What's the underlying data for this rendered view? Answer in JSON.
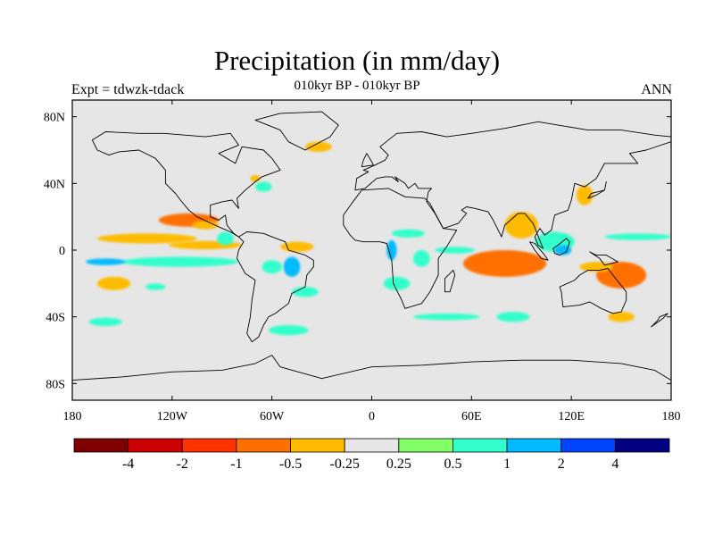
{
  "title": "Precipitation (in mm/day)",
  "subtitle": "010kyr BP - 010kyr BP",
  "left_label": "Expt = tdwzk-tdack",
  "right_label": "ANN",
  "map": {
    "projection": "cylindrical-equidistant",
    "lon_range": [
      -180,
      180
    ],
    "lat_range": [
      -90,
      90
    ],
    "background_color": "#e6e6e6",
    "coastline_color": "#000000",
    "lat_ticks": [
      {
        "value": 80,
        "label": "80N"
      },
      {
        "value": 40,
        "label": "40N"
      },
      {
        "value": 0,
        "label": "0"
      },
      {
        "value": -40,
        "label": "40S"
      },
      {
        "value": -80,
        "label": "80S"
      }
    ],
    "lon_ticks": [
      {
        "value": -180,
        "label": "180"
      },
      {
        "value": -120,
        "label": "120W"
      },
      {
        "value": -60,
        "label": "60W"
      },
      {
        "value": 0,
        "label": "0"
      },
      {
        "value": 60,
        "label": "60E"
      },
      {
        "value": 120,
        "label": "120E"
      },
      {
        "value": 180,
        "label": "180"
      }
    ]
  },
  "colorbar": {
    "colors": [
      "#800000",
      "#cc0000",
      "#ff3300",
      "#ff7000",
      "#ffbb00",
      "#e6e6e6",
      "#80ff66",
      "#33ffcc",
      "#00bbff",
      "#0044ff",
      "#000080"
    ],
    "labels": [
      "-4",
      "-2",
      "-1",
      "-0.5",
      "-0.25",
      "0.25",
      "0.5",
      "1",
      "2",
      "4"
    ]
  },
  "anomalies": [
    {
      "lon": -110,
      "lat": 18,
      "rx": 18,
      "ry": 4,
      "level": -1
    },
    {
      "lon": -100,
      "lat": 15,
      "rx": 8,
      "ry": 2.5,
      "level": -0.5
    },
    {
      "lon": -135,
      "lat": 7,
      "rx": 30,
      "ry": 3,
      "level": -0.5
    },
    {
      "lon": -100,
      "lat": 3,
      "rx": 22,
      "ry": 2.5,
      "level": -0.5
    },
    {
      "lon": -155,
      "lat": -20,
      "rx": 10,
      "ry": 4,
      "level": -0.5
    },
    {
      "lon": -88,
      "lat": 7,
      "rx": 5,
      "ry": 4,
      "level": 0.5
    },
    {
      "lon": -115,
      "lat": -7,
      "rx": 35,
      "ry": 3,
      "level": 0.5
    },
    {
      "lon": -160,
      "lat": -7,
      "rx": 12,
      "ry": 2,
      "level": 1
    },
    {
      "lon": -130,
      "lat": -22,
      "rx": 6,
      "ry": 2,
      "level": 0.5
    },
    {
      "lon": -160,
      "lat": -43,
      "rx": 10,
      "ry": 2.5,
      "level": 0.5
    },
    {
      "lon": -45,
      "lat": 2,
      "rx": 10,
      "ry": 3,
      "level": -0.5
    },
    {
      "lon": -48,
      "lat": -10,
      "rx": 5,
      "ry": 6,
      "level": 1
    },
    {
      "lon": -60,
      "lat": -10,
      "rx": 6,
      "ry": 4,
      "level": 0.5
    },
    {
      "lon": -40,
      "lat": -25,
      "rx": 8,
      "ry": 3,
      "level": 0.5
    },
    {
      "lon": -32,
      "lat": 62,
      "rx": 8,
      "ry": 3,
      "level": -0.5
    },
    {
      "lon": -65,
      "lat": 38,
      "rx": 5,
      "ry": 3,
      "level": 0.5
    },
    {
      "lon": -70,
      "lat": 43,
      "rx": 3,
      "ry": 2,
      "level": -0.5
    },
    {
      "lon": 12,
      "lat": 0,
      "rx": 3,
      "ry": 6,
      "level": 1
    },
    {
      "lon": 22,
      "lat": 10,
      "rx": 10,
      "ry": 2.5,
      "level": 0.5
    },
    {
      "lon": 30,
      "lat": -5,
      "rx": 5,
      "ry": 5,
      "level": 0.5
    },
    {
      "lon": 15,
      "lat": -20,
      "rx": 8,
      "ry": 4,
      "level": 0.5
    },
    {
      "lon": 50,
      "lat": 0,
      "rx": 12,
      "ry": 2,
      "level": 0.5
    },
    {
      "lon": 80,
      "lat": -8,
      "rx": 25,
      "ry": 8,
      "level": -1
    },
    {
      "lon": 90,
      "lat": 15,
      "rx": 10,
      "ry": 8,
      "level": -0.5
    },
    {
      "lon": 110,
      "lat": 5,
      "rx": 12,
      "ry": 6,
      "level": 0.5
    },
    {
      "lon": 115,
      "lat": 0,
      "rx": 5,
      "ry": 3,
      "level": 1
    },
    {
      "lon": 160,
      "lat": 8,
      "rx": 20,
      "ry": 2,
      "level": 0.5
    },
    {
      "lon": 150,
      "lat": -15,
      "rx": 15,
      "ry": 8,
      "level": -1
    },
    {
      "lon": 135,
      "lat": -10,
      "rx": 10,
      "ry": 3,
      "level": -0.5
    },
    {
      "lon": 150,
      "lat": -40,
      "rx": 8,
      "ry": 3,
      "level": -0.5
    },
    {
      "lon": 85,
      "lat": -40,
      "rx": 10,
      "ry": 3,
      "level": 0.5
    },
    {
      "lon": 128,
      "lat": 33,
      "rx": 5,
      "ry": 6,
      "level": -0.5
    },
    {
      "lon": -50,
      "lat": -48,
      "rx": 12,
      "ry": 3,
      "level": 0.5
    },
    {
      "lon": 45,
      "lat": -40,
      "rx": 20,
      "ry": 2,
      "level": 0.5
    }
  ],
  "land": [
    [
      [
        -168,
        66
      ],
      [
        -160,
        71
      ],
      [
        -140,
        70
      ],
      [
        -125,
        70
      ],
      [
        -100,
        68
      ],
      [
        -85,
        70
      ],
      [
        -80,
        63
      ],
      [
        -92,
        58
      ],
      [
        -82,
        52
      ],
      [
        -78,
        62
      ],
      [
        -65,
        60
      ],
      [
        -60,
        55
      ],
      [
        -55,
        48
      ],
      [
        -66,
        44
      ],
      [
        -70,
        41
      ],
      [
        -76,
        36
      ],
      [
        -81,
        31
      ],
      [
        -80,
        25
      ],
      [
        -84,
        30
      ],
      [
        -90,
        29
      ],
      [
        -97,
        27
      ],
      [
        -97,
        20
      ],
      [
        -92,
        18
      ],
      [
        -88,
        21
      ],
      [
        -87,
        15
      ],
      [
        -83,
        10
      ],
      [
        -80,
        8
      ],
      [
        -85,
        11
      ],
      [
        -92,
        14
      ],
      [
        -105,
        20
      ],
      [
        -110,
        24
      ],
      [
        -115,
        30
      ],
      [
        -118,
        34
      ],
      [
        -124,
        40
      ],
      [
        -124,
        48
      ],
      [
        -130,
        55
      ],
      [
        -140,
        60
      ],
      [
        -152,
        59
      ],
      [
        -158,
        57
      ],
      [
        -165,
        60
      ],
      [
        -168,
        66
      ]
    ],
    [
      [
        -55,
        82
      ],
      [
        -30,
        83
      ],
      [
        -20,
        75
      ],
      [
        -25,
        68
      ],
      [
        -40,
        60
      ],
      [
        -50,
        65
      ],
      [
        -55,
        72
      ],
      [
        -70,
        78
      ],
      [
        -55,
        82
      ]
    ],
    [
      [
        -80,
        8
      ],
      [
        -75,
        11
      ],
      [
        -65,
        10
      ],
      [
        -60,
        8
      ],
      [
        -52,
        5
      ],
      [
        -50,
        0
      ],
      [
        -40,
        -3
      ],
      [
        -35,
        -6
      ],
      [
        -35,
        -10
      ],
      [
        -39,
        -15
      ],
      [
        -40,
        -22
      ],
      [
        -48,
        -26
      ],
      [
        -50,
        -32
      ],
      [
        -58,
        -38
      ],
      [
        -62,
        -40
      ],
      [
        -65,
        -45
      ],
      [
        -68,
        -52
      ],
      [
        -72,
        -55
      ],
      [
        -75,
        -50
      ],
      [
        -73,
        -40
      ],
      [
        -72,
        -30
      ],
      [
        -70,
        -18
      ],
      [
        -76,
        -14
      ],
      [
        -81,
        -5
      ],
      [
        -80,
        0
      ],
      [
        -77,
        5
      ],
      [
        -80,
        8
      ]
    ],
    [
      [
        -17,
        15
      ],
      [
        -17,
        21
      ],
      [
        -12,
        28
      ],
      [
        -6,
        36
      ],
      [
        10,
        37
      ],
      [
        20,
        32
      ],
      [
        32,
        31
      ],
      [
        35,
        28
      ],
      [
        43,
        13
      ],
      [
        51,
        12
      ],
      [
        45,
        2
      ],
      [
        40,
        -5
      ],
      [
        40,
        -15
      ],
      [
        35,
        -25
      ],
      [
        30,
        -32
      ],
      [
        20,
        -35
      ],
      [
        18,
        -30
      ],
      [
        13,
        -20
      ],
      [
        12,
        -6
      ],
      [
        9,
        4
      ],
      [
        5,
        5
      ],
      [
        -5,
        5
      ],
      [
        -10,
        6
      ],
      [
        -13,
        9
      ],
      [
        -17,
        15
      ]
    ],
    [
      [
        -10,
        36
      ],
      [
        -9,
        43
      ],
      [
        -2,
        47
      ],
      [
        -5,
        48
      ],
      [
        2,
        51
      ],
      [
        8,
        54
      ],
      [
        10,
        57
      ],
      [
        5,
        62
      ],
      [
        15,
        70
      ],
      [
        30,
        71
      ],
      [
        45,
        68
      ],
      [
        60,
        70
      ],
      [
        80,
        73
      ],
      [
        100,
        77
      ],
      [
        130,
        72
      ],
      [
        150,
        72
      ],
      [
        170,
        69
      ],
      [
        180,
        68
      ],
      [
        180,
        65
      ],
      [
        165,
        60
      ],
      [
        155,
        58
      ],
      [
        160,
        52
      ],
      [
        140,
        52
      ],
      [
        135,
        43
      ],
      [
        128,
        38
      ],
      [
        122,
        40
      ],
      [
        120,
        30
      ],
      [
        118,
        24
      ],
      [
        110,
        21
      ],
      [
        108,
        12
      ],
      [
        104,
        9
      ],
      [
        101,
        13
      ],
      [
        98,
        8
      ],
      [
        100,
        3
      ],
      [
        103,
        1
      ],
      [
        97,
        16
      ],
      [
        92,
        22
      ],
      [
        88,
        22
      ],
      [
        80,
        15
      ],
      [
        78,
        8
      ],
      [
        73,
        18
      ],
      [
        70,
        23
      ],
      [
        62,
        25
      ],
      [
        57,
        26
      ],
      [
        54,
        24
      ],
      [
        57,
        22
      ],
      [
        52,
        16
      ],
      [
        43,
        13
      ],
      [
        38,
        22
      ],
      [
        33,
        29
      ],
      [
        34,
        35
      ],
      [
        36,
        37
      ],
      [
        28,
        37
      ],
      [
        26,
        40
      ],
      [
        22,
        37
      ],
      [
        20,
        40
      ],
      [
        14,
        44
      ],
      [
        16,
        41
      ],
      [
        12,
        44
      ],
      [
        8,
        44
      ],
      [
        3,
        43
      ],
      [
        -4,
        37
      ],
      [
        -10,
        36
      ]
    ],
    [
      [
        -6,
        50
      ],
      [
        -5,
        54
      ],
      [
        -3,
        58
      ],
      [
        0,
        53
      ],
      [
        1,
        51
      ],
      [
        -6,
        50
      ]
    ],
    [
      [
        130,
        -12
      ],
      [
        137,
        -12
      ],
      [
        142,
        -11
      ],
      [
        145,
        -15
      ],
      [
        153,
        -25
      ],
      [
        153,
        -30
      ],
      [
        150,
        -37
      ],
      [
        145,
        -38
      ],
      [
        138,
        -35
      ],
      [
        131,
        -31
      ],
      [
        125,
        -33
      ],
      [
        115,
        -34
      ],
      [
        114,
        -25
      ],
      [
        113,
        -22
      ],
      [
        122,
        -18
      ],
      [
        125,
        -15
      ],
      [
        130,
        -12
      ]
    ],
    [
      [
        -180,
        -78
      ],
      [
        -150,
        -76
      ],
      [
        -120,
        -73
      ],
      [
        -90,
        -72
      ],
      [
        -70,
        -68
      ],
      [
        -60,
        -63
      ],
      [
        -55,
        -70
      ],
      [
        -30,
        -77
      ],
      [
        0,
        -70
      ],
      [
        30,
        -69
      ],
      [
        60,
        -67
      ],
      [
        90,
        -66
      ],
      [
        120,
        -66
      ],
      [
        150,
        -68
      ],
      [
        170,
        -72
      ],
      [
        180,
        -78
      ],
      [
        180,
        -90
      ],
      [
        -180,
        -90
      ],
      [
        -180,
        -78
      ]
    ],
    [
      [
        130,
        31
      ],
      [
        132,
        34
      ],
      [
        136,
        35
      ],
      [
        140,
        36
      ],
      [
        141,
        41
      ],
      [
        140,
        36
      ],
      [
        135,
        33
      ],
      [
        130,
        31
      ]
    ],
    [
      [
        95,
        5
      ],
      [
        98,
        4
      ],
      [
        104,
        -3
      ],
      [
        106,
        -6
      ],
      [
        102,
        -5
      ],
      [
        98,
        0
      ],
      [
        95,
        5
      ]
    ],
    [
      [
        109,
        1
      ],
      [
        112,
        3
      ],
      [
        117,
        7
      ],
      [
        119,
        5
      ],
      [
        117,
        -1
      ],
      [
        113,
        -3
      ],
      [
        110,
        -2
      ],
      [
        109,
        1
      ]
    ],
    [
      [
        131,
        -1
      ],
      [
        135,
        -3
      ],
      [
        141,
        -3
      ],
      [
        148,
        -7
      ],
      [
        144,
        -8
      ],
      [
        140,
        -9
      ],
      [
        137,
        -5
      ],
      [
        131,
        -1
      ]
    ],
    [
      [
        44,
        -25
      ],
      [
        47,
        -25
      ],
      [
        50,
        -15
      ],
      [
        49,
        -12
      ],
      [
        44,
        -17
      ],
      [
        44,
        -25
      ]
    ],
    [
      [
        173,
        -40
      ],
      [
        178,
        -38
      ],
      [
        175,
        -41
      ],
      [
        168,
        -46
      ],
      [
        172,
        -42
      ],
      [
        173,
        -40
      ]
    ]
  ]
}
